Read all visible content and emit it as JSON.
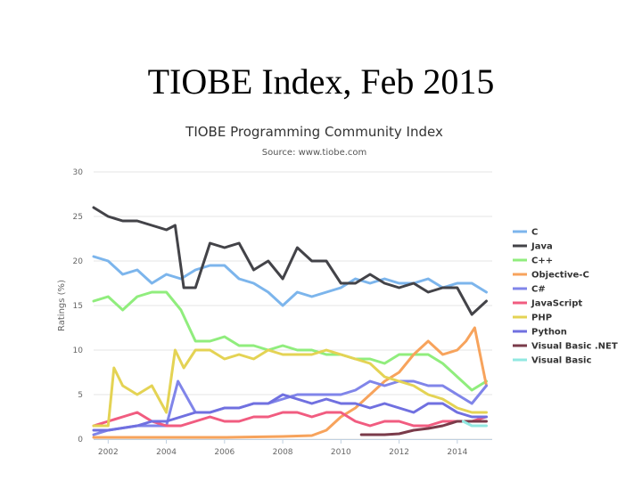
{
  "slide": {
    "title": "TIOBE Index, Feb 2015"
  },
  "chart_data": {
    "type": "line",
    "title": "TIOBE Programming Community Index",
    "subtitle": "Source: www.tiobe.com",
    "xlabel": "",
    "ylabel": "Ratings (%)",
    "xlim": [
      2001.5,
      2015.2
    ],
    "ylim": [
      0,
      30
    ],
    "x_ticks": [
      "2002",
      "2004",
      "2006",
      "2008",
      "2010",
      "2012",
      "2014"
    ],
    "y_ticks": [
      "0",
      "5",
      "10",
      "15",
      "20",
      "25",
      "30"
    ],
    "grid": true,
    "legend_position": "right",
    "series": [
      {
        "name": "C",
        "color": "#7cb5ec",
        "x": [
          2001.5,
          2002,
          2002.5,
          2003,
          2003.5,
          2004,
          2004.5,
          2005,
          2005.5,
          2006,
          2006.5,
          2007,
          2007.5,
          2008,
          2008.5,
          2009,
          2009.5,
          2010,
          2010.5,
          2011,
          2011.5,
          2012,
          2012.5,
          2013,
          2013.5,
          2014,
          2014.5,
          2015
        ],
        "y": [
          20.5,
          20,
          18.5,
          19,
          17.5,
          18.5,
          18,
          19,
          19.5,
          19.5,
          18,
          17.5,
          16.5,
          15,
          16.5,
          16,
          16.5,
          17,
          18,
          17.5,
          18,
          17.5,
          17.5,
          18,
          17,
          17.5,
          17.5,
          16.5
        ]
      },
      {
        "name": "Java",
        "color": "#434348",
        "x": [
          2001.5,
          2002,
          2002.5,
          2003,
          2003.5,
          2004,
          2004.3,
          2004.6,
          2005,
          2005.5,
          2006,
          2006.5,
          2007,
          2007.5,
          2008,
          2008.5,
          2009,
          2009.5,
          2010,
          2010.5,
          2011,
          2011.5,
          2012,
          2012.5,
          2013,
          2013.5,
          2014,
          2014.5,
          2015
        ],
        "y": [
          26,
          25,
          24.5,
          24.5,
          24,
          23.5,
          24,
          17,
          17,
          22,
          21.5,
          22,
          19,
          20,
          18,
          21.5,
          20,
          20,
          17.5,
          17.5,
          18.5,
          17.5,
          17,
          17.5,
          16.5,
          17,
          17,
          14,
          15.5
        ]
      },
      {
        "name": "C++",
        "color": "#90ed7d",
        "x": [
          2001.5,
          2002,
          2002.5,
          2003,
          2003.5,
          2004,
          2004.5,
          2005,
          2005.5,
          2006,
          2006.5,
          2007,
          2007.5,
          2008,
          2008.5,
          2009,
          2009.5,
          2010,
          2010.5,
          2011,
          2011.5,
          2012,
          2012.5,
          2013,
          2013.5,
          2014,
          2014.5,
          2015
        ],
        "y": [
          15.5,
          16,
          14.5,
          16,
          16.5,
          16.5,
          14.5,
          11,
          11,
          11.5,
          10.5,
          10.5,
          10,
          10.5,
          10,
          10,
          9.5,
          9.5,
          9,
          9,
          8.5,
          9.5,
          9.5,
          9.5,
          8.5,
          7,
          5.5,
          6.5
        ]
      },
      {
        "name": "Objective-C",
        "color": "#f7a35c",
        "x": [
          2001.5,
          2002,
          2004,
          2006,
          2008,
          2009,
          2009.5,
          2010,
          2010.5,
          2011,
          2011.5,
          2012,
          2012.5,
          2013,
          2013.5,
          2014,
          2014.3,
          2014.6,
          2015
        ],
        "y": [
          0.2,
          0.2,
          0.2,
          0.2,
          0.3,
          0.4,
          1,
          2.5,
          3.5,
          5,
          6.5,
          7.5,
          9.5,
          11,
          9.5,
          10,
          11,
          12.5,
          6
        ]
      },
      {
        "name": "C#",
        "color": "#8085e9",
        "x": [
          2001.5,
          2002,
          2003,
          2004,
          2004.4,
          2005,
          2005.5,
          2006,
          2006.5,
          2007,
          2007.5,
          2008,
          2008.5,
          2009,
          2009.5,
          2010,
          2010.5,
          2011,
          2011.5,
          2012,
          2012.5,
          2013,
          2013.5,
          2014,
          2014.5,
          2015
        ],
        "y": [
          0.5,
          1,
          1.5,
          1.5,
          6.5,
          3,
          3,
          3.5,
          3.5,
          4,
          4,
          4.5,
          5,
          5,
          5,
          5,
          5.5,
          6.5,
          6,
          6.5,
          6.5,
          6,
          6,
          5,
          4,
          6
        ]
      },
      {
        "name": "JavaScript",
        "color": "#f15c80",
        "x": [
          2001.5,
          2002,
          2002.5,
          2003,
          2003.5,
          2004,
          2004.5,
          2005,
          2005.5,
          2006,
          2006.5,
          2007,
          2007.5,
          2008,
          2008.5,
          2009,
          2009.5,
          2010,
          2010.5,
          2011,
          2011.5,
          2012,
          2012.5,
          2013,
          2013.5,
          2014,
          2014.5,
          2015
        ],
        "y": [
          1.5,
          2,
          2.5,
          3,
          2,
          1.5,
          1.5,
          2,
          2.5,
          2,
          2,
          2.5,
          2.5,
          3,
          3,
          2.5,
          3,
          3,
          2,
          1.5,
          2,
          2,
          1.5,
          1.5,
          2,
          2,
          2,
          2.5
        ]
      },
      {
        "name": "PHP",
        "color": "#e4d354",
        "x": [
          2001.5,
          2002,
          2002.2,
          2002.5,
          2003,
          2003.5,
          2004,
          2004.3,
          2004.6,
          2005,
          2005.5,
          2006,
          2006.5,
          2007,
          2007.5,
          2008,
          2008.5,
          2009,
          2009.5,
          2010,
          2010.5,
          2011,
          2011.5,
          2012,
          2012.5,
          2013,
          2013.5,
          2014,
          2014.5,
          2015
        ],
        "y": [
          1.5,
          1.5,
          8,
          6,
          5,
          6,
          3,
          10,
          8,
          10,
          10,
          9,
          9.5,
          9,
          10,
          9.5,
          9.5,
          9.5,
          10,
          9.5,
          9,
          8.5,
          7,
          6.5,
          6,
          5,
          4.5,
          3.5,
          3,
          3
        ]
      },
      {
        "name": "Python",
        "color": "#7070e0",
        "x": [
          2001.5,
          2002,
          2003,
          2003.5,
          2004,
          2004.5,
          2005,
          2005.5,
          2006,
          2006.5,
          2007,
          2007.5,
          2008,
          2008.5,
          2009,
          2009.5,
          2010,
          2010.5,
          2011,
          2011.5,
          2012,
          2012.5,
          2013,
          2013.5,
          2014,
          2014.5,
          2015
        ],
        "y": [
          1,
          1,
          1.5,
          2,
          2,
          2.5,
          3,
          3,
          3.5,
          3.5,
          4,
          4,
          5,
          4.5,
          4,
          4.5,
          4,
          4,
          3.5,
          4,
          3.5,
          3,
          4,
          4,
          3,
          2.5,
          2.5
        ]
      },
      {
        "name": "Visual Basic .NET",
        "color": "#7a3b4a",
        "x": [
          2010.7,
          2011,
          2011.5,
          2012,
          2012.5,
          2013,
          2013.5,
          2014,
          2014.5,
          2015
        ],
        "y": [
          0.5,
          0.5,
          0.5,
          0.6,
          1,
          1.2,
          1.5,
          2,
          2,
          2
        ]
      },
      {
        "name": "Visual Basic",
        "color": "#91e8e1",
        "x": [
          2014.2,
          2014.5,
          2014.8,
          2015
        ],
        "y": [
          2,
          1.5,
          1.5,
          1.5
        ]
      }
    ]
  }
}
